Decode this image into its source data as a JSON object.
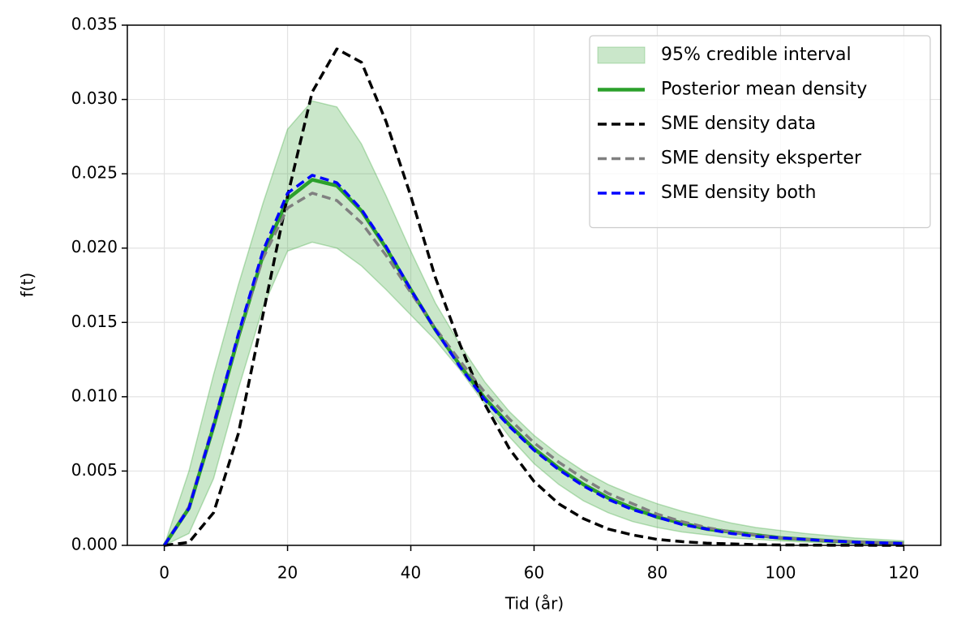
{
  "chart_data": {
    "type": "line",
    "xlabel": "Tid (år)",
    "ylabel": "f(t)",
    "x": [
      0,
      4,
      8,
      12,
      16,
      20,
      24,
      28,
      32,
      36,
      40,
      44,
      48,
      52,
      56,
      60,
      64,
      68,
      72,
      76,
      80,
      84,
      88,
      92,
      96,
      100,
      104,
      108,
      112,
      116,
      120
    ],
    "band": {
      "name": "95% credible interval",
      "color": "#2ca02c",
      "lower": [
        0,
        0.0008,
        0.0045,
        0.0105,
        0.016,
        0.0198,
        0.0204,
        0.02,
        0.0188,
        0.0172,
        0.0155,
        0.0138,
        0.0118,
        0.0095,
        0.0073,
        0.0055,
        0.0041,
        0.003,
        0.0022,
        0.0016,
        0.0012,
        0.0009,
        0.0007,
        0.0005,
        0.0004,
        0.0003,
        0.00022,
        0.00016,
        0.00012,
        0.0001,
        7e-05
      ],
      "upper": [
        0,
        0.005,
        0.0115,
        0.0175,
        0.023,
        0.028,
        0.0299,
        0.0295,
        0.027,
        0.0235,
        0.0198,
        0.0163,
        0.0135,
        0.011,
        0.009,
        0.0074,
        0.0061,
        0.005,
        0.0041,
        0.0034,
        0.0028,
        0.0023,
        0.0019,
        0.0015,
        0.0012,
        0.001,
        0.0008,
        0.00065,
        0.0005,
        0.0004,
        0.0003
      ]
    },
    "series": [
      {
        "name": "Posterior mean density",
        "color": "#2ca02c",
        "linestyle": "solid",
        "values": [
          0,
          0.0025,
          0.008,
          0.014,
          0.0195,
          0.0233,
          0.0246,
          0.0242,
          0.0225,
          0.02,
          0.0172,
          0.0145,
          0.0121,
          0.0099,
          0.0081,
          0.0065,
          0.0052,
          0.0041,
          0.0032,
          0.0025,
          0.0019,
          0.0015,
          0.0011,
          0.0009,
          0.0007,
          0.0005,
          0.0004,
          0.0003,
          0.00022,
          0.00017,
          0.00013
        ]
      },
      {
        "name": "SME density data",
        "color": "#000000",
        "linestyle": "dashed",
        "values": [
          0,
          0.0002,
          0.0022,
          0.0075,
          0.0155,
          0.0235,
          0.0305,
          0.0334,
          0.0325,
          0.0285,
          0.0235,
          0.018,
          0.0135,
          0.0095,
          0.0065,
          0.0043,
          0.0028,
          0.0018,
          0.0011,
          0.0007,
          0.0004,
          0.00025,
          0.00015,
          0.0001,
          5e-05,
          3e-05,
          2e-05,
          1e-05,
          1e-05,
          0,
          0
        ]
      },
      {
        "name": "SME density eksperter",
        "color": "#808080",
        "linestyle": "dashed",
        "values": [
          0,
          0.0026,
          0.0082,
          0.0141,
          0.0193,
          0.0227,
          0.0237,
          0.0232,
          0.0217,
          0.0195,
          0.017,
          0.0146,
          0.0124,
          0.0103,
          0.0085,
          0.0069,
          0.0056,
          0.0045,
          0.0035,
          0.0028,
          0.0021,
          0.0016,
          0.0012,
          0.0009,
          0.0007,
          0.0005,
          0.0004,
          0.0003,
          0.00023,
          0.00018,
          0.00014
        ]
      },
      {
        "name": "SME density both",
        "color": "#0000ff",
        "linestyle": "dashed",
        "values": [
          0,
          0.0025,
          0.0081,
          0.0142,
          0.0198,
          0.0237,
          0.0249,
          0.0244,
          0.0226,
          0.0201,
          0.0172,
          0.0145,
          0.012,
          0.0098,
          0.008,
          0.0064,
          0.0051,
          0.004,
          0.0031,
          0.0024,
          0.0019,
          0.0014,
          0.0011,
          0.0008,
          0.0006,
          0.0005,
          0.0004,
          0.0003,
          0.00022,
          0.00017,
          0.00013
        ]
      }
    ],
    "xlim": [
      -6,
      126
    ],
    "ylim": [
      0,
      0.035
    ],
    "xticks": [
      0,
      20,
      40,
      60,
      80,
      100,
      120
    ],
    "yticks": [
      {
        "value": 0,
        "label": "0.000"
      },
      {
        "value": 0.005,
        "label": "0.005"
      },
      {
        "value": 0.01,
        "label": "0.010"
      },
      {
        "value": 0.015,
        "label": "0.015"
      },
      {
        "value": 0.02,
        "label": "0.020"
      },
      {
        "value": 0.025,
        "label": "0.025"
      },
      {
        "value": 0.03,
        "label": "0.030"
      },
      {
        "value": 0.035,
        "label": "0.035"
      }
    ],
    "grid": true,
    "legend": "upper right"
  }
}
